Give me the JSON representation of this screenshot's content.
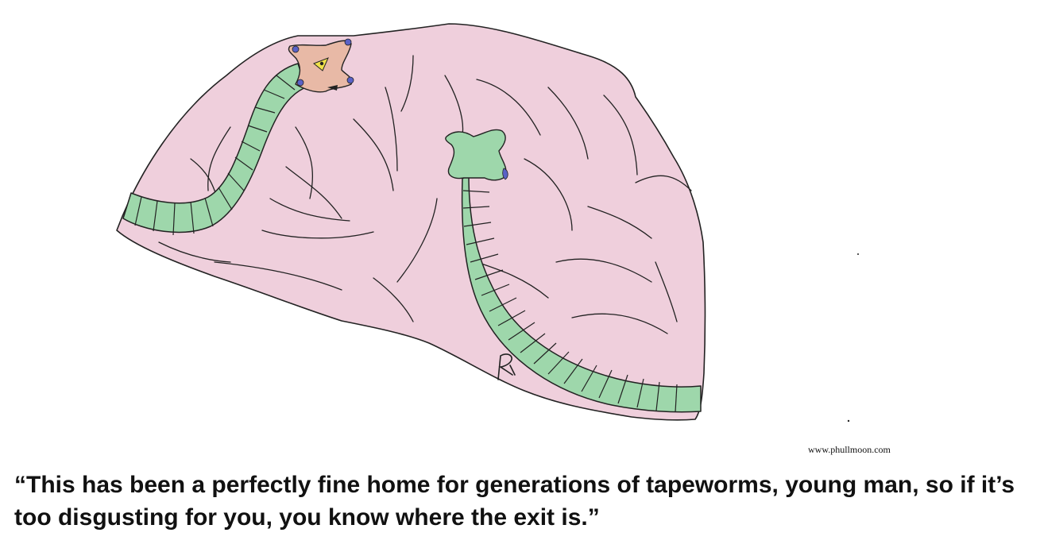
{
  "credit": "www.phullmoon.com",
  "caption": "“This has been a perfectly fine home for generations of tapeworms, young man, so if it’s too disgusting for you, you know where the exit is.”",
  "artist_signature": "R",
  "colors": {
    "background": "#ffffff",
    "tissue": "#efcfdc",
    "worm": "#9ed7ab",
    "worm_head": "#e8b9a6",
    "hooks": "#5a62c6",
    "eye": "#f0e24a",
    "ink": "#222222"
  }
}
